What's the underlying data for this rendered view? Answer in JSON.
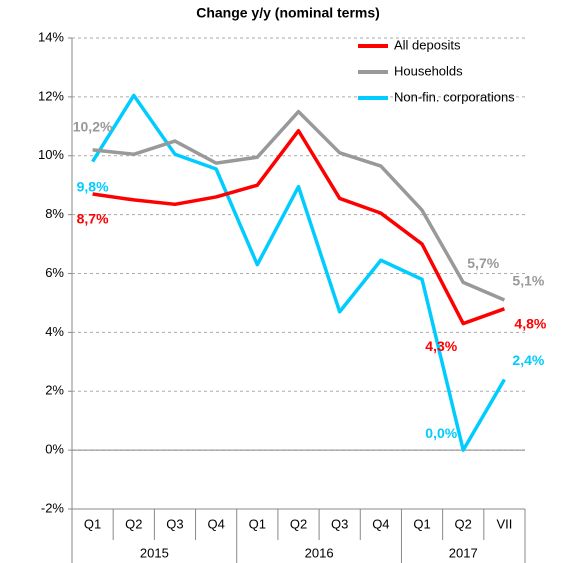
{
  "chart_data": {
    "type": "line",
    "title": "Change y/y (nominal terms)",
    "categories": [
      "Q1",
      "Q2",
      "Q3",
      "Q4",
      "Q1",
      "Q2",
      "Q3",
      "Q4",
      "Q1",
      "Q2",
      "VII"
    ],
    "groups": [
      {
        "label": "2015",
        "count": 4
      },
      {
        "label": "2016",
        "count": 4
      },
      {
        "label": "2017",
        "count": 3
      }
    ],
    "series": [
      {
        "name": "All deposits",
        "color": "#ff0000",
        "values": [
          8.7,
          8.5,
          8.35,
          8.6,
          9.0,
          10.85,
          8.55,
          8.05,
          7.0,
          4.3,
          4.8
        ],
        "value_labels": [
          "8,7%",
          null,
          null,
          null,
          null,
          null,
          null,
          null,
          null,
          "4,3%",
          "4,8%"
        ]
      },
      {
        "name": "Households",
        "color": "#999999",
        "values": [
          10.2,
          10.05,
          10.5,
          9.75,
          9.95,
          11.5,
          10.1,
          9.65,
          8.15,
          5.7,
          5.1
        ],
        "value_labels": [
          "10,2%",
          null,
          null,
          null,
          null,
          null,
          null,
          null,
          null,
          "5,7%",
          "5,1%"
        ]
      },
      {
        "name": "Non-fin. corporations",
        "color": "#00ccff",
        "values": [
          9.8,
          12.05,
          10.05,
          9.55,
          6.3,
          8.95,
          4.7,
          6.45,
          5.8,
          0.0,
          2.4
        ],
        "value_labels": [
          "9,8%",
          null,
          null,
          null,
          null,
          null,
          null,
          null,
          null,
          "0,0%",
          "2,4%"
        ]
      }
    ],
    "ylim": [
      -2,
      14
    ],
    "yticks": [
      {
        "value": -2,
        "label": "-2%"
      },
      {
        "value": 0,
        "label": "0%"
      },
      {
        "value": 2,
        "label": "2%"
      },
      {
        "value": 4,
        "label": "4%"
      },
      {
        "value": 6,
        "label": "6%"
      },
      {
        "value": 8,
        "label": "8%"
      },
      {
        "value": 10,
        "label": "10%"
      },
      {
        "value": 12,
        "label": "12%"
      },
      {
        "value": 14,
        "label": "14%"
      }
    ],
    "grid": true,
    "legend": "top-right"
  }
}
